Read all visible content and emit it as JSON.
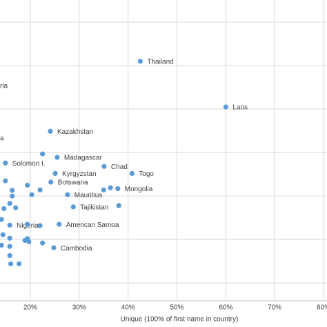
{
  "chart_data": {
    "type": "scatter",
    "xlabel": "Unique (100% of first name in country)",
    "xlim": [
      13.8,
      80.7
    ],
    "xticks": [
      {
        "value": 20,
        "label": "20%"
      },
      {
        "value": 30,
        "label": "30%"
      },
      {
        "value": 40,
        "label": "40%"
      },
      {
        "value": 50,
        "label": "50%"
      },
      {
        "value": 60,
        "label": "60%"
      },
      {
        "value": 70,
        "label": "70%"
      },
      {
        "value": 80,
        "label": "80%"
      }
    ],
    "ylim": [
      -0.41,
      6.51
    ],
    "yticks": [
      0,
      1,
      2,
      3,
      4,
      5,
      6
    ],
    "grid": true,
    "annotations": [
      "ria",
      "a"
    ],
    "series": [
      {
        "color": "#5b9bd5",
        "x": [
          42.5,
          60.0,
          24.1,
          25.5,
          35.1,
          40.8,
          25.1,
          24.2,
          37.9,
          27.6,
          28.8,
          25.9,
          15.8,
          24.8,
          14.9,
          22.5,
          14.9,
          16.3,
          16.3,
          19.4,
          20.3,
          22.0,
          15.8,
          17.0,
          14.6,
          14.1,
          19.4,
          22.0,
          14.4,
          15.8,
          18.9,
          19.7,
          19.4,
          22.5,
          14.1,
          15.8,
          15.8,
          16.0,
          17.7,
          36.4,
          38.1,
          35.0
        ],
        "values": [
          5.1,
          4.05,
          3.49,
          2.89,
          2.68,
          2.52,
          2.52,
          2.32,
          2.17,
          2.03,
          1.75,
          1.35,
          1.33,
          0.81,
          2.76,
          2.97,
          2.35,
          2.13,
          2.0,
          2.25,
          2.03,
          2.14,
          1.83,
          1.73,
          1.71,
          1.46,
          1.35,
          1.32,
          1.11,
          1.03,
          0.98,
          0.95,
          1.02,
          0.92,
          0.87,
          0.84,
          0.63,
          0.44,
          0.44,
          2.19,
          1.78,
          2.14
        ],
        "labels": [
          "Thailand",
          "Laos",
          "Kazakhstan",
          "Madagascar",
          "Chad",
          "Togo",
          "Kyrgyzstan",
          "Botswana",
          "Mongolia",
          "Mauritius",
          "Tajikistan",
          "American Samoa",
          "Nigeria",
          "Cambodia",
          "Solomon I.",
          null,
          null,
          null,
          null,
          null,
          null,
          null,
          null,
          null,
          null,
          null,
          null,
          null,
          null,
          null,
          null,
          null,
          null,
          null,
          null,
          null,
          null,
          null,
          null,
          null,
          null,
          null
        ]
      }
    ]
  }
}
